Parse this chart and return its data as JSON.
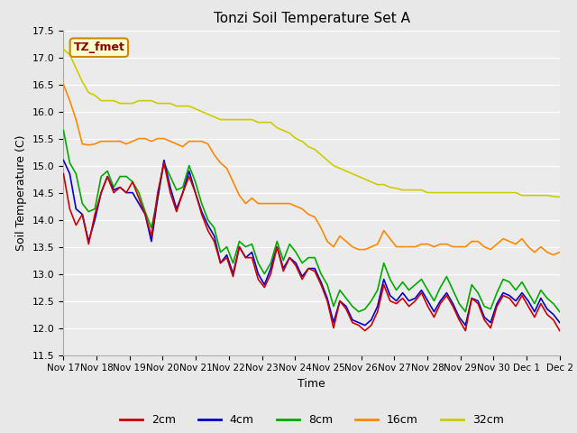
{
  "title": "Tonzi Soil Temperature Set A",
  "xlabel": "Time",
  "ylabel": "Soil Temperature (C)",
  "ylim": [
    11.5,
    17.5
  ],
  "xlim": [
    0,
    15
  ],
  "xtick_labels": [
    "Nov 17",
    "Nov 18",
    "Nov 19",
    "Nov 20",
    "Nov 21",
    "Nov 22",
    "Nov 23",
    "Nov 24",
    "Nov 25",
    "Nov 26",
    "Nov 27",
    "Nov 28",
    "Nov 29",
    "Nov 30",
    "Dec 1",
    "Dec 2"
  ],
  "colors": {
    "2cm": "#cc0000",
    "4cm": "#0000cc",
    "8cm": "#00aa00",
    "16cm": "#ff8800",
    "32cm": "#cccc00"
  },
  "legend_label": "TZ_fmet",
  "legend_box_bg": "#ffffcc",
  "legend_box_border": "#cc8800",
  "legend_text_color": "#880000",
  "background_color": "#e8e8e8",
  "plot_bg_color": "#ebebeb",
  "series": {
    "2cm": [
      14.85,
      14.2,
      13.9,
      14.1,
      13.55,
      14.1,
      14.5,
      14.8,
      14.5,
      14.6,
      14.5,
      14.7,
      14.4,
      14.1,
      13.7,
      14.5,
      15.05,
      14.5,
      14.15,
      14.5,
      14.8,
      14.5,
      14.1,
      13.8,
      13.6,
      13.2,
      13.3,
      12.95,
      13.5,
      13.3,
      13.3,
      12.9,
      12.75,
      13.0,
      13.5,
      13.05,
      13.3,
      13.15,
      12.9,
      13.1,
      13.05,
      12.8,
      12.5,
      12.0,
      12.5,
      12.35,
      12.1,
      12.05,
      11.95,
      12.05,
      12.3,
      12.8,
      12.5,
      12.45,
      12.55,
      12.4,
      12.5,
      12.65,
      12.4,
      12.2,
      12.45,
      12.6,
      12.4,
      12.15,
      11.95,
      12.55,
      12.45,
      12.15,
      12.0,
      12.4,
      12.6,
      12.55,
      12.4,
      12.6,
      12.4,
      12.2,
      12.45,
      12.25,
      12.15,
      11.95
    ],
    "4cm": [
      15.1,
      14.85,
      14.2,
      14.1,
      13.6,
      14.0,
      14.5,
      14.8,
      14.55,
      14.6,
      14.5,
      14.5,
      14.3,
      14.1,
      13.6,
      14.4,
      15.1,
      14.6,
      14.2,
      14.5,
      14.9,
      14.5,
      14.15,
      13.9,
      13.7,
      13.2,
      13.35,
      13.0,
      13.5,
      13.3,
      13.4,
      13.0,
      12.8,
      13.1,
      13.5,
      13.1,
      13.3,
      13.2,
      12.95,
      13.1,
      13.1,
      12.85,
      12.55,
      12.1,
      12.5,
      12.4,
      12.15,
      12.1,
      12.05,
      12.15,
      12.4,
      12.9,
      12.6,
      12.5,
      12.65,
      12.5,
      12.55,
      12.7,
      12.5,
      12.3,
      12.5,
      12.65,
      12.45,
      12.2,
      12.05,
      12.55,
      12.5,
      12.2,
      12.1,
      12.45,
      12.65,
      12.6,
      12.5,
      12.65,
      12.5,
      12.3,
      12.55,
      12.35,
      12.25,
      12.1
    ],
    "8cm": [
      15.65,
      15.05,
      14.85,
      14.3,
      14.15,
      14.2,
      14.8,
      14.9,
      14.6,
      14.8,
      14.8,
      14.7,
      14.5,
      14.15,
      13.85,
      14.4,
      15.05,
      14.8,
      14.55,
      14.6,
      15.0,
      14.7,
      14.3,
      14.0,
      13.85,
      13.4,
      13.5,
      13.2,
      13.6,
      13.5,
      13.55,
      13.2,
      13.0,
      13.2,
      13.6,
      13.25,
      13.55,
      13.4,
      13.2,
      13.3,
      13.3,
      13.0,
      12.8,
      12.4,
      12.7,
      12.55,
      12.4,
      12.3,
      12.35,
      12.5,
      12.7,
      13.2,
      12.9,
      12.7,
      12.85,
      12.7,
      12.8,
      12.9,
      12.7,
      12.5,
      12.75,
      12.95,
      12.7,
      12.45,
      12.3,
      12.8,
      12.65,
      12.4,
      12.35,
      12.65,
      12.9,
      12.85,
      12.7,
      12.85,
      12.65,
      12.45,
      12.7,
      12.55,
      12.45,
      12.3
    ],
    "16cm": [
      16.5,
      16.2,
      15.85,
      15.4,
      15.38,
      15.4,
      15.45,
      15.45,
      15.45,
      15.45,
      15.4,
      15.45,
      15.5,
      15.5,
      15.45,
      15.5,
      15.5,
      15.45,
      15.4,
      15.35,
      15.45,
      15.45,
      15.45,
      15.4,
      15.2,
      15.05,
      14.95,
      14.7,
      14.45,
      14.3,
      14.4,
      14.3,
      14.3,
      14.3,
      14.3,
      14.3,
      14.3,
      14.25,
      14.2,
      14.1,
      14.05,
      13.85,
      13.6,
      13.5,
      13.7,
      13.6,
      13.5,
      13.45,
      13.45,
      13.5,
      13.55,
      13.8,
      13.65,
      13.5,
      13.5,
      13.5,
      13.5,
      13.55,
      13.55,
      13.5,
      13.55,
      13.55,
      13.5,
      13.5,
      13.5,
      13.6,
      13.6,
      13.5,
      13.45,
      13.55,
      13.65,
      13.6,
      13.55,
      13.65,
      13.5,
      13.4,
      13.5,
      13.4,
      13.35,
      13.4
    ],
    "32cm": [
      17.15,
      17.05,
      16.8,
      16.55,
      16.35,
      16.3,
      16.2,
      16.2,
      16.2,
      16.15,
      16.15,
      16.15,
      16.2,
      16.2,
      16.2,
      16.15,
      16.15,
      16.15,
      16.1,
      16.1,
      16.1,
      16.05,
      16.0,
      15.95,
      15.9,
      15.85,
      15.85,
      15.85,
      15.85,
      15.85,
      15.85,
      15.8,
      15.8,
      15.8,
      15.7,
      15.65,
      15.6,
      15.5,
      15.45,
      15.35,
      15.3,
      15.2,
      15.1,
      15.0,
      14.95,
      14.9,
      14.85,
      14.8,
      14.75,
      14.7,
      14.65,
      14.65,
      14.6,
      14.58,
      14.55,
      14.55,
      14.55,
      14.55,
      14.5,
      14.5,
      14.5,
      14.5,
      14.5,
      14.5,
      14.5,
      14.5,
      14.5,
      14.5,
      14.5,
      14.5,
      14.5,
      14.5,
      14.5,
      14.45,
      14.45,
      14.45,
      14.45,
      14.45,
      14.43,
      14.42
    ]
  }
}
